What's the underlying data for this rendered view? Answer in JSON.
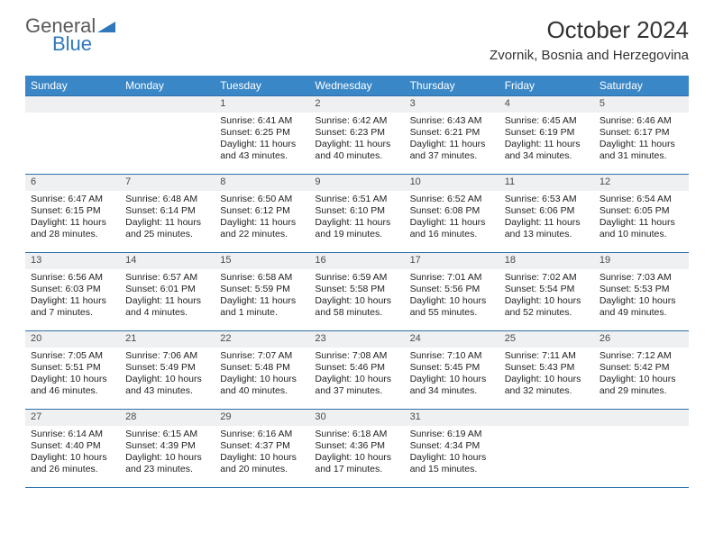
{
  "logo": {
    "word1": "General",
    "word2": "Blue"
  },
  "title": "October 2024",
  "location": "Zvornik, Bosnia and Herzegovina",
  "colors": {
    "header_bar": "#3a87c8",
    "rule": "#2f6fa8",
    "daynum_bg": "#eef0f1",
    "logo_gray": "#5a5a5a",
    "logo_blue": "#2f78bd"
  },
  "dow": [
    "Sunday",
    "Monday",
    "Tuesday",
    "Wednesday",
    "Thursday",
    "Friday",
    "Saturday"
  ],
  "weeks": [
    [
      {
        "n": "",
        "sr": "",
        "ss": "",
        "dl": ""
      },
      {
        "n": "",
        "sr": "",
        "ss": "",
        "dl": ""
      },
      {
        "n": "1",
        "sr": "Sunrise: 6:41 AM",
        "ss": "Sunset: 6:25 PM",
        "dl": "Daylight: 11 hours and 43 minutes."
      },
      {
        "n": "2",
        "sr": "Sunrise: 6:42 AM",
        "ss": "Sunset: 6:23 PM",
        "dl": "Daylight: 11 hours and 40 minutes."
      },
      {
        "n": "3",
        "sr": "Sunrise: 6:43 AM",
        "ss": "Sunset: 6:21 PM",
        "dl": "Daylight: 11 hours and 37 minutes."
      },
      {
        "n": "4",
        "sr": "Sunrise: 6:45 AM",
        "ss": "Sunset: 6:19 PM",
        "dl": "Daylight: 11 hours and 34 minutes."
      },
      {
        "n": "5",
        "sr": "Sunrise: 6:46 AM",
        "ss": "Sunset: 6:17 PM",
        "dl": "Daylight: 11 hours and 31 minutes."
      }
    ],
    [
      {
        "n": "6",
        "sr": "Sunrise: 6:47 AM",
        "ss": "Sunset: 6:15 PM",
        "dl": "Daylight: 11 hours and 28 minutes."
      },
      {
        "n": "7",
        "sr": "Sunrise: 6:48 AM",
        "ss": "Sunset: 6:14 PM",
        "dl": "Daylight: 11 hours and 25 minutes."
      },
      {
        "n": "8",
        "sr": "Sunrise: 6:50 AM",
        "ss": "Sunset: 6:12 PM",
        "dl": "Daylight: 11 hours and 22 minutes."
      },
      {
        "n": "9",
        "sr": "Sunrise: 6:51 AM",
        "ss": "Sunset: 6:10 PM",
        "dl": "Daylight: 11 hours and 19 minutes."
      },
      {
        "n": "10",
        "sr": "Sunrise: 6:52 AM",
        "ss": "Sunset: 6:08 PM",
        "dl": "Daylight: 11 hours and 16 minutes."
      },
      {
        "n": "11",
        "sr": "Sunrise: 6:53 AM",
        "ss": "Sunset: 6:06 PM",
        "dl": "Daylight: 11 hours and 13 minutes."
      },
      {
        "n": "12",
        "sr": "Sunrise: 6:54 AM",
        "ss": "Sunset: 6:05 PM",
        "dl": "Daylight: 11 hours and 10 minutes."
      }
    ],
    [
      {
        "n": "13",
        "sr": "Sunrise: 6:56 AM",
        "ss": "Sunset: 6:03 PM",
        "dl": "Daylight: 11 hours and 7 minutes."
      },
      {
        "n": "14",
        "sr": "Sunrise: 6:57 AM",
        "ss": "Sunset: 6:01 PM",
        "dl": "Daylight: 11 hours and 4 minutes."
      },
      {
        "n": "15",
        "sr": "Sunrise: 6:58 AM",
        "ss": "Sunset: 5:59 PM",
        "dl": "Daylight: 11 hours and 1 minute."
      },
      {
        "n": "16",
        "sr": "Sunrise: 6:59 AM",
        "ss": "Sunset: 5:58 PM",
        "dl": "Daylight: 10 hours and 58 minutes."
      },
      {
        "n": "17",
        "sr": "Sunrise: 7:01 AM",
        "ss": "Sunset: 5:56 PM",
        "dl": "Daylight: 10 hours and 55 minutes."
      },
      {
        "n": "18",
        "sr": "Sunrise: 7:02 AM",
        "ss": "Sunset: 5:54 PM",
        "dl": "Daylight: 10 hours and 52 minutes."
      },
      {
        "n": "19",
        "sr": "Sunrise: 7:03 AM",
        "ss": "Sunset: 5:53 PM",
        "dl": "Daylight: 10 hours and 49 minutes."
      }
    ],
    [
      {
        "n": "20",
        "sr": "Sunrise: 7:05 AM",
        "ss": "Sunset: 5:51 PM",
        "dl": "Daylight: 10 hours and 46 minutes."
      },
      {
        "n": "21",
        "sr": "Sunrise: 7:06 AM",
        "ss": "Sunset: 5:49 PM",
        "dl": "Daylight: 10 hours and 43 minutes."
      },
      {
        "n": "22",
        "sr": "Sunrise: 7:07 AM",
        "ss": "Sunset: 5:48 PM",
        "dl": "Daylight: 10 hours and 40 minutes."
      },
      {
        "n": "23",
        "sr": "Sunrise: 7:08 AM",
        "ss": "Sunset: 5:46 PM",
        "dl": "Daylight: 10 hours and 37 minutes."
      },
      {
        "n": "24",
        "sr": "Sunrise: 7:10 AM",
        "ss": "Sunset: 5:45 PM",
        "dl": "Daylight: 10 hours and 34 minutes."
      },
      {
        "n": "25",
        "sr": "Sunrise: 7:11 AM",
        "ss": "Sunset: 5:43 PM",
        "dl": "Daylight: 10 hours and 32 minutes."
      },
      {
        "n": "26",
        "sr": "Sunrise: 7:12 AM",
        "ss": "Sunset: 5:42 PM",
        "dl": "Daylight: 10 hours and 29 minutes."
      }
    ],
    [
      {
        "n": "27",
        "sr": "Sunrise: 6:14 AM",
        "ss": "Sunset: 4:40 PM",
        "dl": "Daylight: 10 hours and 26 minutes."
      },
      {
        "n": "28",
        "sr": "Sunrise: 6:15 AM",
        "ss": "Sunset: 4:39 PM",
        "dl": "Daylight: 10 hours and 23 minutes."
      },
      {
        "n": "29",
        "sr": "Sunrise: 6:16 AM",
        "ss": "Sunset: 4:37 PM",
        "dl": "Daylight: 10 hours and 20 minutes."
      },
      {
        "n": "30",
        "sr": "Sunrise: 6:18 AM",
        "ss": "Sunset: 4:36 PM",
        "dl": "Daylight: 10 hours and 17 minutes."
      },
      {
        "n": "31",
        "sr": "Sunrise: 6:19 AM",
        "ss": "Sunset: 4:34 PM",
        "dl": "Daylight: 10 hours and 15 minutes."
      },
      {
        "n": "",
        "sr": "",
        "ss": "",
        "dl": ""
      },
      {
        "n": "",
        "sr": "",
        "ss": "",
        "dl": ""
      }
    ]
  ]
}
